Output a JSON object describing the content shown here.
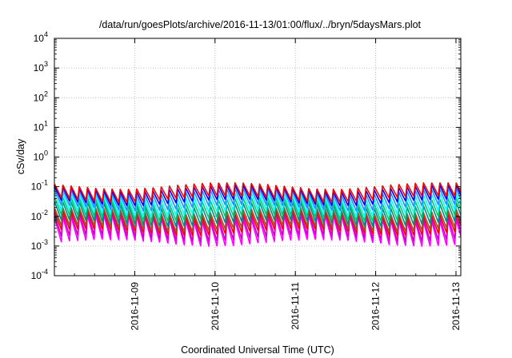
{
  "chart_data": {
    "type": "line",
    "title": "/data/run/goesPlots/archive/2016-11-13/01:00/flux/../bryn/5daysMars.plot",
    "xlabel": "Coordinated Universal Time (UTC)",
    "ylabel": "cSv/day",
    "yscale": "log",
    "ylim_exponents": [
      -4,
      4
    ],
    "y_ticks": [
      {
        "base": "10",
        "exp": "4"
      },
      {
        "base": "10",
        "exp": "3"
      },
      {
        "base": "10",
        "exp": "2"
      },
      {
        "base": "10",
        "exp": "1"
      },
      {
        "base": "10",
        "exp": "0"
      },
      {
        "base": "10",
        "exp": "-1"
      },
      {
        "base": "10",
        "exp": "-2"
      },
      {
        "base": "10",
        "exp": "-3"
      },
      {
        "base": "10",
        "exp": "-4"
      }
    ],
    "x_range_days": [
      "2016-11-08T00:00",
      "2016-11-13T00:00"
    ],
    "x_ticks": [
      "2016-11-09",
      "2016-11-10",
      "2016-11-11",
      "2016-11-12",
      "2016-11-13"
    ],
    "grid": true,
    "legend": "none",
    "sawtooth_cycles_per_day": 9.8,
    "series": [
      {
        "color": "#ff00ff",
        "peak": 0.009,
        "trough": 0.0013
      },
      {
        "color": "#cc00cc",
        "peak": 0.011,
        "trough": 0.0019
      },
      {
        "color": "#ff0000",
        "peak": 0.013,
        "trough": 0.003
      },
      {
        "color": "#a0522d",
        "peak": 0.016,
        "trough": 0.004
      },
      {
        "color": "#008b8b",
        "peak": 0.025,
        "trough": 0.006
      },
      {
        "color": "#00cc66",
        "peak": 0.035,
        "trough": 0.009
      },
      {
        "color": "#00ffff",
        "peak": 0.05,
        "trough": 0.013
      },
      {
        "color": "#1e90ff",
        "peak": 0.07,
        "trough": 0.02
      },
      {
        "color": "#0000ff",
        "peak": 0.09,
        "trough": 0.03
      },
      {
        "color": "#ff0000",
        "peak": 0.11,
        "trough": 0.04
      }
    ]
  }
}
